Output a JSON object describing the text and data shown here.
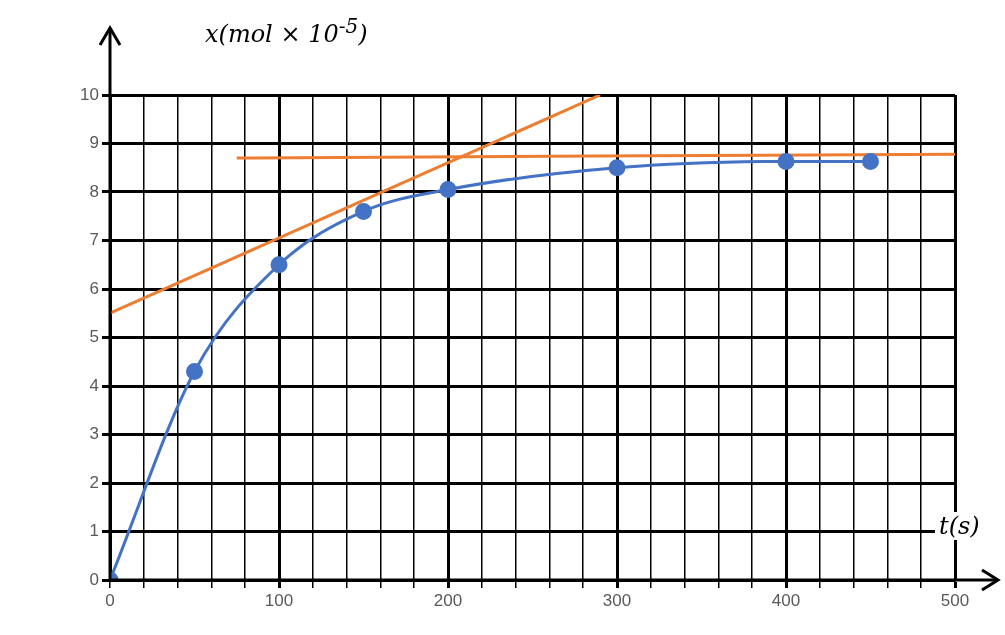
{
  "chart_data": {
    "type": "line",
    "ylabel": "x(mol × 10$^{-5}$)",
    "xlabel": "t(s)",
    "xlim": [
      0,
      500
    ],
    "ylim": [
      0,
      10
    ],
    "xticks": [
      0,
      {
        "value": 20,
        "label": null
      },
      {
        "value": 40,
        "label": null
      },
      {
        "value": 60,
        "label": null
      },
      {
        "value": 80,
        "label": null
      },
      100,
      {
        "value": 120,
        "label": null
      },
      {
        "value": 140,
        "label": null
      },
      {
        "value": 160,
        "label": null
      },
      {
        "value": 180,
        "label": null
      },
      200,
      {
        "value": 220,
        "label": null
      },
      {
        "value": 240,
        "label": null
      },
      {
        "value": 260,
        "label": null
      },
      {
        "value": 280,
        "label": null
      },
      300,
      {
        "value": 320,
        "label": null
      },
      {
        "value": 340,
        "label": null
      },
      {
        "value": 360,
        "label": null
      },
      {
        "value": 380,
        "label": null
      },
      400,
      {
        "value": 420,
        "label": null
      },
      {
        "value": 440,
        "label": null
      },
      {
        "value": 460,
        "label": null
      },
      {
        "value": 480,
        "label": null
      },
      500
    ],
    "yticks": [
      0,
      1,
      2,
      3,
      4,
      5,
      6,
      7,
      8,
      9,
      10
    ],
    "grid": true,
    "legend": false,
    "series": [
      {
        "color": "#4472c4",
        "marker": "circle",
        "x": [
          0,
          50,
          100,
          150,
          200,
          300,
          400,
          450
        ],
        "values": [
          0,
          4.3,
          6.5,
          7.6,
          8.05,
          8.5,
          8.63,
          8.63
        ]
      },
      {
        "color": "#ed7d31",
        "marker": "none",
        "x": [
          0,
          290
        ],
        "values": [
          5.5,
          10
        ]
      },
      {
        "color": "#ed7d31",
        "marker": "none",
        "x": [
          75,
          500
        ],
        "values": [
          8.7,
          8.78
        ]
      }
    ]
  }
}
